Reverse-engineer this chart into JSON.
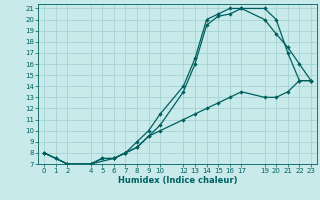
{
  "xlabel": "Humidex (Indice chaleur)",
  "bg_color": "#c8eaea",
  "grid_color": "#9ecece",
  "line_color": "#006060",
  "xlim": [
    -0.5,
    23.5
  ],
  "ylim": [
    7,
    21.4
  ],
  "xtick_positions": [
    0,
    1,
    2,
    4,
    5,
    6,
    7,
    8,
    9,
    10,
    12,
    13,
    14,
    15,
    16,
    17,
    19,
    20,
    21,
    22,
    23
  ],
  "xtick_labels": [
    "0",
    "1",
    "2",
    "4",
    "5",
    "6",
    "7",
    "8",
    "9",
    "10",
    "12",
    "13",
    "14",
    "15",
    "16",
    "17",
    "19",
    "20",
    "21",
    "22",
    "23"
  ],
  "ytick_positions": [
    7,
    8,
    9,
    10,
    11,
    12,
    13,
    14,
    15,
    16,
    17,
    18,
    19,
    20,
    21
  ],
  "ytick_labels": [
    "7",
    "8",
    "9",
    "10",
    "11",
    "12",
    "13",
    "14",
    "15",
    "16",
    "17",
    "18",
    "19",
    "20",
    "21"
  ],
  "curve1_x": [
    0,
    1,
    2,
    4,
    5,
    6,
    7,
    8,
    9,
    10,
    12,
    13,
    14,
    15,
    16,
    17,
    19,
    20,
    21,
    22,
    23
  ],
  "curve1_y": [
    8,
    7.5,
    7,
    7,
    7.5,
    7.5,
    8.0,
    8.5,
    9.5,
    10.5,
    13.5,
    16.0,
    19.5,
    20.3,
    20.5,
    21.0,
    20.0,
    18.7,
    17.5,
    16.0,
    14.5
  ],
  "curve2_x": [
    0,
    1,
    2,
    4,
    5,
    6,
    7,
    8,
    9,
    10,
    12,
    13,
    14,
    15,
    16,
    17,
    19,
    20,
    21,
    22,
    23
  ],
  "curve2_y": [
    8,
    7.5,
    7,
    7,
    7.5,
    7.5,
    8.0,
    9.0,
    10.0,
    11.5,
    14.0,
    16.5,
    20.0,
    20.5,
    21.0,
    21.0,
    21.0,
    20.0,
    17.0,
    14.5,
    14.5
  ],
  "curve3_x": [
    0,
    2,
    4,
    6,
    7,
    8,
    9,
    10,
    12,
    13,
    14,
    15,
    16,
    17,
    19,
    20,
    21,
    22,
    23
  ],
  "curve3_y": [
    8,
    7,
    7,
    7.5,
    8.0,
    8.5,
    9.5,
    10.0,
    11.0,
    11.5,
    12.0,
    12.5,
    13.0,
    13.5,
    13.0,
    13.0,
    13.5,
    14.5,
    14.5
  ],
  "marker_size": 2.2,
  "line_width": 0.9,
  "tick_labelsize": 5.0,
  "xlabel_fontsize": 6.0
}
